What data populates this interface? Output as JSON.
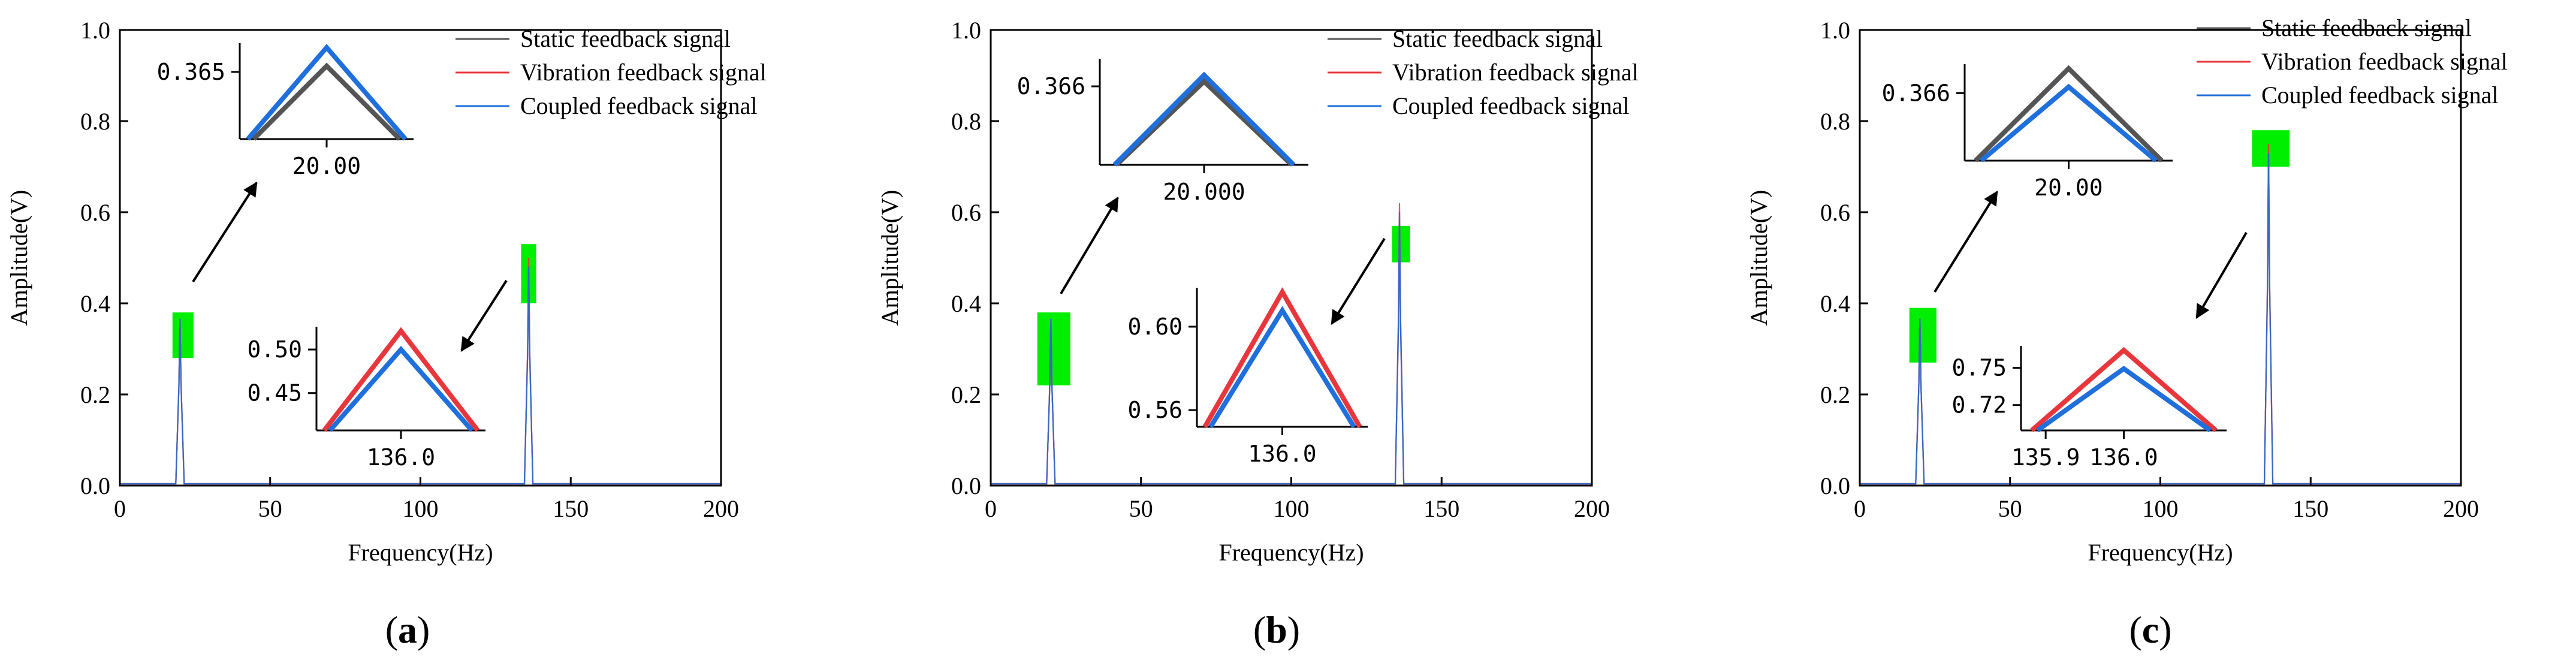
{
  "colors": {
    "static": "#555555",
    "vibration": "#e8363d",
    "coupled": "#1f6fdc",
    "highlight": "#00ee00",
    "axis": "#000000"
  },
  "chart_data": [
    {
      "type": "line",
      "panel_label": "a",
      "xlabel": "Frequency(Hz)",
      "ylabel": "Amplitude(V)",
      "xlim": [
        0,
        200
      ],
      "ylim": [
        0,
        1
      ],
      "x_ticks": [
        "0",
        "50",
        "100",
        "150",
        "200"
      ],
      "y_ticks": [
        "0.0",
        "0.2",
        "0.4",
        "0.6",
        "0.8",
        "1.0"
      ],
      "legend": [
        "Static feedback signal",
        "Vibration feedback signal",
        "Coupled feedback signal"
      ],
      "series": [
        {
          "name": "Static feedback signal",
          "peaks": [
            {
              "x": 20,
              "y": 0.365
            },
            {
              "x": 136,
              "y": 0.48
            }
          ]
        },
        {
          "name": "Vibration feedback signal",
          "peaks": [
            {
              "x": 20,
              "y": 0.365
            },
            {
              "x": 136,
              "y": 0.5
            }
          ]
        },
        {
          "name": "Coupled feedback signal",
          "peaks": [
            {
              "x": 20,
              "y": 0.366
            },
            {
              "x": 136,
              "y": 0.48
            }
          ]
        }
      ],
      "highlights": [
        {
          "x0": 17.5,
          "x1": 24.5,
          "y0": 0.28,
          "y1": 0.38
        },
        {
          "x0": 133.5,
          "x1": 138.5,
          "y0": 0.4,
          "y1": 0.53
        }
      ],
      "insets": [
        {
          "name": "peak-20",
          "y_tick": "0.365",
          "x_tick": "20.00",
          "lines": [
            {
              "series": "Static feedback signal",
              "peak_offset": 0.0
            },
            {
              "series": "Coupled feedback signal",
              "peak_offset": 1.0
            }
          ]
        },
        {
          "name": "peak-136",
          "y_ticks": [
            "0.50",
            "0.45"
          ],
          "x_tick": "136.0",
          "lines": [
            {
              "series": "Vibration feedback signal",
              "peak_offset": 1.0
            },
            {
              "series": "Coupled feedback signal",
              "peak_offset": 0.0
            }
          ]
        }
      ]
    },
    {
      "type": "line",
      "panel_label": "b",
      "xlabel": "Frequency(Hz)",
      "ylabel": "Amplitude(V)",
      "xlim": [
        0,
        200
      ],
      "ylim": [
        0,
        1
      ],
      "x_ticks": [
        "0",
        "50",
        "100",
        "150",
        "200"
      ],
      "y_ticks": [
        "0.0",
        "0.2",
        "0.4",
        "0.6",
        "0.8",
        "1.0"
      ],
      "legend": [
        "Static feedback signal",
        "Vibration feedback signal",
        "Coupled feedback signal"
      ],
      "series": [
        {
          "name": "Static feedback signal",
          "peaks": [
            {
              "x": 20,
              "y": 0.366
            },
            {
              "x": 136,
              "y": 0.58
            }
          ]
        },
        {
          "name": "Vibration feedback signal",
          "peaks": [
            {
              "x": 20,
              "y": 0.366
            },
            {
              "x": 136,
              "y": 0.62
            }
          ]
        },
        {
          "name": "Coupled feedback signal",
          "peaks": [
            {
              "x": 20,
              "y": 0.366
            },
            {
              "x": 136,
              "y": 0.6
            }
          ]
        }
      ],
      "highlights": [
        {
          "x0": 15.5,
          "x1": 26.5,
          "y0": 0.22,
          "y1": 0.38
        },
        {
          "x0": 133.5,
          "x1": 139.5,
          "y0": 0.49,
          "y1": 0.57
        }
      ],
      "insets": [
        {
          "name": "peak-20",
          "y_tick": "0.366",
          "x_tick": "20.000",
          "lines": [
            {
              "series": "Static feedback signal",
              "peak_offset": 0.0
            },
            {
              "series": "Coupled feedback signal",
              "peak_offset": 0.35
            }
          ]
        },
        {
          "name": "peak-136",
          "y_ticks": [
            "0.60",
            "0.56"
          ],
          "x_tick": "136.0",
          "lines": [
            {
              "series": "Vibration feedback signal",
              "peak_offset": 1.0
            },
            {
              "series": "Coupled feedback signal",
              "peak_offset": 0.0
            }
          ]
        }
      ]
    },
    {
      "type": "line",
      "panel_label": "c",
      "xlabel": "Frequency(Hz)",
      "ylabel": "Amplitude(V)",
      "xlim": [
        0,
        200
      ],
      "ylim": [
        0,
        1
      ],
      "x_ticks": [
        "0",
        "50",
        "100",
        "150",
        "200"
      ],
      "y_ticks": [
        "0.0",
        "0.2",
        "0.4",
        "0.6",
        "0.8",
        "1.0"
      ],
      "legend": [
        "Static feedback signal",
        "Vibration feedback signal",
        "Coupled feedback signal"
      ],
      "series": [
        {
          "name": "Static feedback signal",
          "peaks": [
            {
              "x": 20,
              "y": 0.366
            },
            {
              "x": 136,
              "y": 0.73
            }
          ]
        },
        {
          "name": "Vibration feedback signal",
          "peaks": [
            {
              "x": 20,
              "y": 0.366
            },
            {
              "x": 136,
              "y": 0.75
            }
          ]
        },
        {
          "name": "Coupled feedback signal",
          "peaks": [
            {
              "x": 20,
              "y": 0.366
            },
            {
              "x": 136,
              "y": 0.73
            }
          ]
        }
      ],
      "highlights": [
        {
          "x0": 16.5,
          "x1": 25.5,
          "y0": 0.27,
          "y1": 0.39
        },
        {
          "x0": 130.5,
          "x1": 143,
          "y0": 0.7,
          "y1": 0.78
        }
      ],
      "insets": [
        {
          "name": "peak-20",
          "y_tick": "0.366",
          "x_tick": "20.00",
          "lines": [
            {
              "series": "Static feedback signal",
              "peak_offset": 1.0
            },
            {
              "series": "Coupled feedback signal",
              "peak_offset": 0.0
            }
          ]
        },
        {
          "name": "peak-136",
          "y_ticks": [
            "0.75",
            "0.72"
          ],
          "x_ticks": [
            "135.9",
            "136.0"
          ],
          "lines": [
            {
              "series": "Vibration feedback signal",
              "peak_offset": 1.0
            },
            {
              "series": "Coupled feedback signal",
              "peak_offset": 0.0
            }
          ]
        }
      ]
    }
  ]
}
